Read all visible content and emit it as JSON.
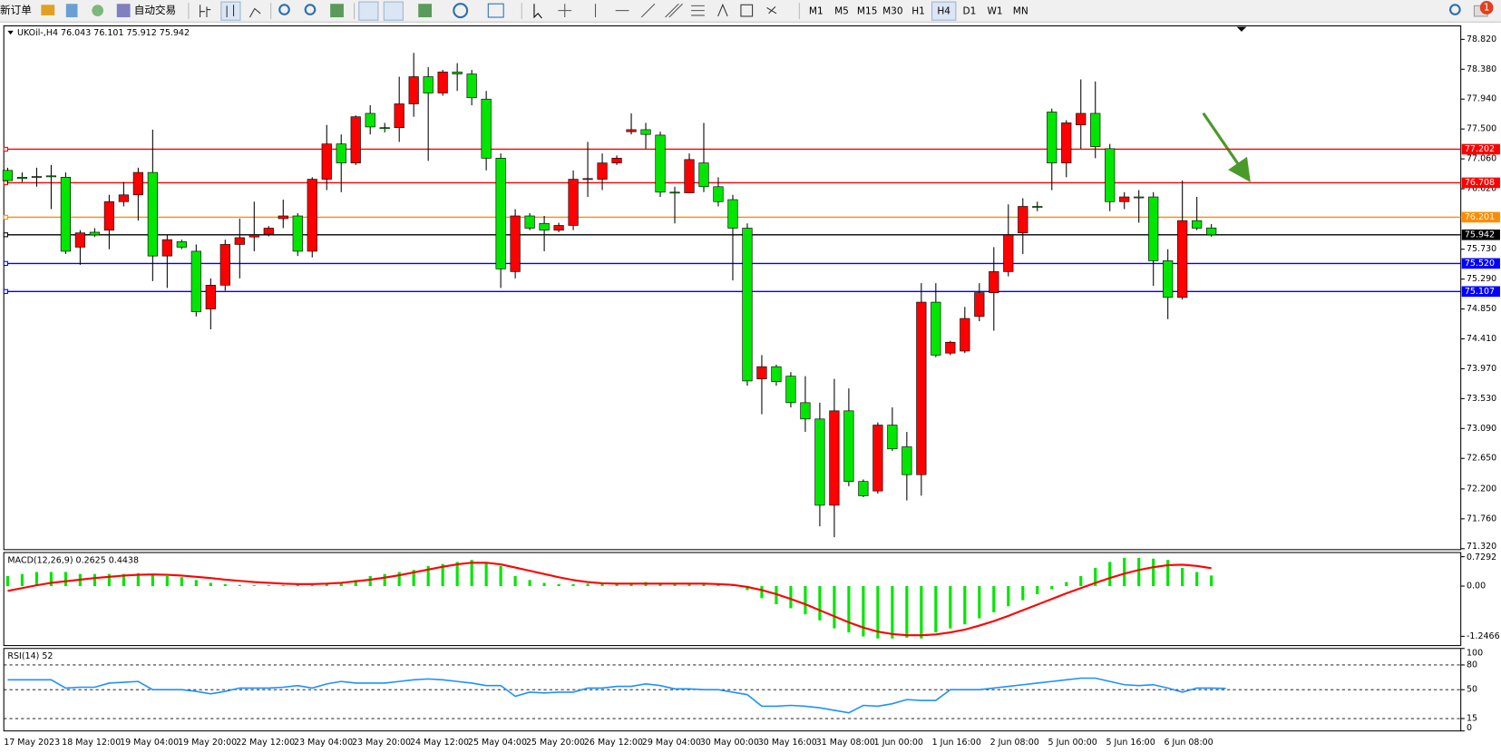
{
  "toolbar": {
    "new_order": "新订单",
    "auto_trading": "自动交易",
    "timeframes": [
      "M1",
      "M5",
      "M15",
      "M30",
      "H1",
      "H4",
      "D1",
      "W1",
      "MN"
    ],
    "active_timeframe": "H4",
    "notifications": 1
  },
  "chart_data": [
    {
      "type": "candlestick",
      "title": "UKOil-,H4",
      "up_color": "#ff0000",
      "down_color": "#00e600",
      "wick_color": "#000000",
      "categories": [
        "17 May 2023",
        null,
        null,
        null,
        "18 May 12:00",
        null,
        null,
        null,
        "19 May 04:00",
        null,
        null,
        null,
        "19 May 20:00",
        null,
        null,
        null,
        "22 May 12:00",
        null,
        null,
        null,
        "23 May 04:00",
        null,
        null,
        null,
        "23 May 20:00",
        null,
        null,
        null,
        "24 May 12:00",
        null,
        null,
        null,
        "25 May 04:00",
        null,
        null,
        null,
        "25 May 20:00",
        null,
        null,
        null,
        "26 May 12:00",
        null,
        null,
        null,
        "29 May 04:00",
        null,
        null,
        null,
        "30 May 00:00",
        null,
        null,
        null,
        "30 May 16:00",
        null,
        null,
        null,
        "31 May 08:00",
        null,
        null,
        null,
        "1 Jun 00:00",
        null,
        null,
        null,
        "1 Jun 16:00",
        null,
        null,
        null,
        "2 Jun 08:00",
        null,
        null,
        null,
        "5 Jun 00:00",
        null,
        null,
        null,
        "5 Jun 16:00",
        null,
        null,
        null,
        "6 Jun 08:00",
        null,
        null,
        null
      ],
      "open": [
        76.89,
        76.79,
        76.8,
        76.81,
        76.79,
        75.76,
        75.98,
        76.01,
        76.43,
        76.53,
        76.86,
        75.63,
        75.84,
        75.7,
        74.85,
        75.2,
        75.8,
        75.91,
        75.95,
        76.18,
        76.22,
        75.7,
        76.76,
        77.28,
        77.0,
        77.73,
        77.52,
        77.52,
        77.87,
        78.27,
        78.03,
        78.34,
        78.31,
        77.94,
        77.07,
        75.4,
        76.22,
        76.11,
        76.01,
        76.08,
        76.76,
        76.76,
        77.0,
        77.46,
        77.49,
        77.41,
        76.57,
        76.56,
        77.0,
        76.65,
        76.46,
        76.04,
        73.82,
        74.0,
        73.86,
        73.47,
        73.23,
        71.96,
        73.35,
        72.31,
        72.17,
        73.14,
        72.82,
        72.41,
        74.95,
        74.2,
        74.23,
        74.74,
        75.09,
        75.4,
        75.97,
        76.36,
        77.75,
        77.0,
        77.56,
        77.73,
        77.21,
        76.43,
        76.5,
        76.5,
        75.56,
        75.02,
        76.15,
        76.043
      ],
      "high": [
        76.93,
        76.86,
        76.93,
        76.97,
        76.86,
        76.01,
        76.04,
        76.53,
        76.72,
        76.93,
        77.49,
        75.94,
        75.87,
        75.8,
        75.3,
        75.87,
        76.18,
        76.43,
        76.07,
        76.46,
        76.26,
        76.79,
        77.56,
        77.42,
        77.7,
        77.85,
        77.59,
        78.27,
        78.62,
        78.41,
        78.37,
        78.47,
        78.37,
        78.06,
        77.14,
        76.32,
        76.26,
        76.22,
        76.12,
        76.89,
        77.31,
        77.14,
        77.11,
        77.73,
        77.59,
        77.46,
        76.65,
        77.14,
        77.59,
        76.79,
        76.53,
        76.11,
        74.17,
        74.03,
        73.92,
        73.86,
        73.47,
        73.82,
        73.68,
        72.34,
        73.18,
        73.4,
        73.04,
        75.23,
        75.23,
        74.38,
        74.88,
        75.23,
        75.76,
        76.39,
        76.48,
        76.43,
        77.8,
        77.63,
        78.23,
        78.2,
        77.28,
        76.57,
        76.6,
        76.57,
        75.73,
        76.74,
        76.5,
        76.101
      ],
      "low": [
        76.69,
        76.72,
        76.65,
        76.32,
        75.66,
        75.5,
        75.91,
        75.73,
        76.36,
        76.15,
        75.26,
        75.16,
        75.73,
        74.74,
        74.55,
        75.12,
        75.3,
        75.7,
        75.92,
        76.04,
        75.63,
        75.61,
        76.6,
        76.57,
        76.97,
        77.42,
        77.45,
        77.31,
        77.68,
        77.03,
        77.99,
        78.06,
        77.85,
        76.89,
        75.16,
        75.3,
        76.01,
        75.7,
        75.98,
        76.01,
        76.5,
        76.6,
        76.97,
        77.42,
        77.21,
        76.5,
        76.11,
        76.56,
        76.57,
        76.36,
        75.27,
        73.72,
        73.3,
        73.72,
        73.4,
        73.04,
        71.65,
        71.49,
        72.24,
        72.08,
        72.13,
        72.76,
        72.03,
        72.1,
        74.14,
        74.17,
        74.2,
        74.67,
        74.53,
        75.33,
        75.66,
        76.29,
        76.6,
        76.79,
        77.21,
        77.07,
        76.29,
        76.32,
        76.12,
        75.19,
        74.7,
        74.99,
        76.01,
        75.912
      ],
      "close": [
        76.74,
        76.77,
        76.8,
        76.8,
        75.7,
        75.97,
        75.94,
        76.43,
        76.53,
        76.86,
        75.63,
        75.87,
        75.76,
        74.81,
        75.2,
        75.8,
        75.9,
        75.94,
        76.04,
        76.22,
        75.7,
        76.76,
        77.28,
        77.0,
        77.68,
        77.53,
        77.52,
        77.87,
        78.27,
        78.03,
        78.34,
        78.31,
        77.96,
        77.07,
        75.44,
        76.22,
        76.04,
        76.01,
        76.08,
        76.76,
        76.77,
        77.0,
        77.07,
        77.49,
        77.42,
        76.57,
        76.56,
        77.05,
        76.65,
        76.43,
        76.04,
        73.79,
        74.0,
        73.78,
        73.47,
        73.23,
        71.96,
        73.35,
        72.31,
        72.1,
        73.14,
        72.79,
        72.41,
        74.95,
        74.17,
        74.36,
        74.71,
        75.09,
        75.4,
        75.94,
        76.36,
        76.35,
        77.0,
        77.59,
        77.73,
        77.24,
        76.43,
        76.5,
        76.49,
        75.56,
        75.02,
        76.15,
        76.04,
        75.942
      ],
      "ylim": [
        71.306,
        79.018
      ],
      "yticks": [
        {
          "value": 78.82,
          "label": "78.820"
        },
        {
          "value": 78.38,
          "label": "78.380"
        },
        {
          "value": 77.94,
          "label": "77.940"
        },
        {
          "value": 77.5,
          "label": "77.500"
        },
        {
          "value": 77.06,
          "label": "77.060"
        },
        {
          "value": 76.62,
          "label": "76.620"
        },
        {
          "value": 75.73,
          "label": "75.730"
        },
        {
          "value": 75.29,
          "label": "75.290"
        },
        {
          "value": 74.85,
          "label": "74.850"
        },
        {
          "value": 74.41,
          "label": "74.410"
        },
        {
          "value": 73.97,
          "label": "73.970"
        },
        {
          "value": 73.53,
          "label": "73.530"
        },
        {
          "value": 73.09,
          "label": "73.090"
        },
        {
          "value": 72.65,
          "label": "72.650"
        },
        {
          "value": 72.2,
          "label": "72.200"
        },
        {
          "value": 71.76,
          "label": "71.760"
        },
        {
          "value": 71.32,
          "label": "71.320"
        }
      ],
      "hlines": [
        {
          "value": 77.202,
          "color": "#ff0000"
        },
        {
          "value": 76.708,
          "color": "#ff0000"
        },
        {
          "value": 76.201,
          "color": "#ff8c00"
        },
        {
          "value": 75.942,
          "color": "#000000"
        },
        {
          "value": 75.52,
          "label": "75.520",
          "color": "#0000ff"
        },
        {
          "value": 75.107,
          "color": "#0000ff"
        }
      ]
    },
    {
      "type": "macd",
      "title": "MACD(12,26,9)",
      "color": "#00e600",
      "signal_color": "#ff0000",
      "values": [
        0.25,
        0.3,
        0.35,
        0.35,
        0.35,
        0.3,
        0.3,
        0.3,
        0.3,
        0.32,
        0.3,
        0.25,
        0.22,
        0.15,
        0.08,
        0.05,
        0.03,
        0.02,
        0.02,
        0.02,
        0.03,
        0.02,
        0.05,
        0.1,
        0.15,
        0.25,
        0.3,
        0.35,
        0.4,
        0.5,
        0.55,
        0.6,
        0.65,
        0.6,
        0.5,
        0.25,
        0.15,
        0.08,
        0.05,
        0.05,
        0.06,
        0.08,
        0.08,
        0.08,
        0.1,
        0.08,
        0.05,
        0.04,
        0.05,
        0.04,
        0.02,
        -0.1,
        -0.3,
        -0.45,
        -0.55,
        -0.7,
        -0.85,
        -1.05,
        -1.15,
        -1.25,
        -1.3,
        -1.3,
        -1.28,
        -1.3,
        -1.15,
        -1.05,
        -0.95,
        -0.8,
        -0.65,
        -0.5,
        -0.35,
        -0.2,
        -0.08,
        0.1,
        0.25,
        0.45,
        0.6,
        0.7,
        0.7,
        0.68,
        0.65,
        0.45,
        0.35,
        0.2625
      ],
      "signal": [
        -0.12,
        -0.05,
        0.02,
        0.08,
        0.12,
        0.16,
        0.2,
        0.23,
        0.26,
        0.28,
        0.29,
        0.28,
        0.26,
        0.23,
        0.2,
        0.16,
        0.13,
        0.1,
        0.08,
        0.06,
        0.05,
        0.05,
        0.06,
        0.08,
        0.12,
        0.16,
        0.21,
        0.27,
        0.34,
        0.41,
        0.48,
        0.54,
        0.58,
        0.58,
        0.54,
        0.46,
        0.38,
        0.3,
        0.22,
        0.15,
        0.1,
        0.07,
        0.06,
        0.06,
        0.06,
        0.06,
        0.06,
        0.06,
        0.06,
        0.05,
        0.03,
        -0.02,
        -0.1,
        -0.2,
        -0.32,
        -0.45,
        -0.6,
        -0.75,
        -0.9,
        -1.03,
        -1.13,
        -1.19,
        -1.22,
        -1.22,
        -1.2,
        -1.15,
        -1.08,
        -0.98,
        -0.87,
        -0.74,
        -0.6,
        -0.46,
        -0.32,
        -0.18,
        -0.05,
        0.08,
        0.2,
        0.31,
        0.4,
        0.47,
        0.52,
        0.53,
        0.5,
        0.4438
      ],
      "ylim": [
        -1.476,
        0.833
      ],
      "yticks": [
        {
          "value": 0.7292,
          "label": "0.7292"
        },
        {
          "value": 0,
          "label": "0.00"
        },
        {
          "value": -1.2466,
          "label": "-1.2466"
        }
      ]
    },
    {
      "type": "line",
      "title": "RSI(14)",
      "color": "#1e90ff",
      "values": [
        62,
        62,
        62,
        62,
        52,
        53,
        53,
        58,
        59,
        60,
        50,
        50,
        50,
        48,
        45,
        48,
        52,
        52,
        52,
        53,
        55,
        52,
        57,
        60,
        58,
        58,
        58,
        60,
        62,
        63,
        62,
        60,
        58,
        55,
        55,
        42,
        47,
        46,
        47,
        47,
        52,
        52,
        54,
        54,
        57,
        55,
        51,
        51,
        50,
        50,
        47,
        44,
        30,
        30,
        31,
        30,
        28,
        25,
        22,
        31,
        30,
        33,
        38,
        37,
        37,
        50,
        50,
        50,
        52,
        54,
        56,
        58,
        60,
        62,
        64,
        64,
        60,
        56,
        55,
        56,
        52,
        47,
        52,
        52,
        51.6007
      ],
      "ylim": [
        0,
        100
      ],
      "yticks": [
        100,
        80,
        50,
        15,
        0
      ],
      "levels": [
        80,
        50,
        15
      ]
    }
  ]
}
